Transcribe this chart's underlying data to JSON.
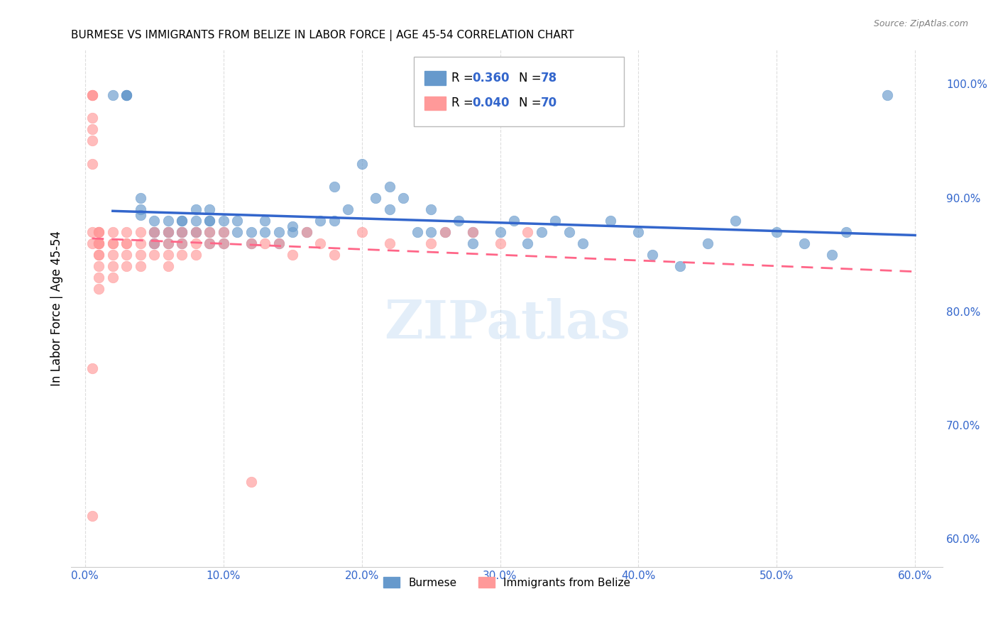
{
  "title": "BURMESE VS IMMIGRANTS FROM BELIZE IN LABOR FORCE | AGE 45-54 CORRELATION CHART",
  "source": "Source: ZipAtlas.com",
  "ylabel": "In Labor Force | Age 45-54",
  "right_ytick_labels": [
    "60.0%",
    "70.0%",
    "80.0%",
    "90.0%",
    "100.0%"
  ],
  "right_ytick_values": [
    0.6,
    0.7,
    0.8,
    0.9,
    1.0
  ],
  "xtick_labels": [
    "0.0%",
    "10.0%",
    "20.0%",
    "30.0%",
    "40.0%",
    "50.0%",
    "60.0%"
  ],
  "xtick_values": [
    0.0,
    0.1,
    0.2,
    0.3,
    0.4,
    0.5,
    0.6
  ],
  "xlim": [
    -0.01,
    0.62
  ],
  "ylim": [
    0.575,
    1.03
  ],
  "blue_color": "#6699CC",
  "pink_color": "#FF9999",
  "trend_blue": "#3366CC",
  "trend_pink": "#FF6688",
  "watermark": "ZIPatlas",
  "legend_label1": "Burmese",
  "legend_label2": "Immigrants from Belize",
  "legend_r1": "0.360",
  "legend_n1": "78",
  "legend_r2": "0.040",
  "legend_n2": "70",
  "blue_scatter_x": [
    0.02,
    0.03,
    0.03,
    0.03,
    0.04,
    0.04,
    0.04,
    0.05,
    0.05,
    0.05,
    0.05,
    0.05,
    0.06,
    0.06,
    0.06,
    0.06,
    0.07,
    0.07,
    0.07,
    0.07,
    0.07,
    0.08,
    0.08,
    0.08,
    0.08,
    0.09,
    0.09,
    0.09,
    0.09,
    0.09,
    0.1,
    0.1,
    0.1,
    0.11,
    0.11,
    0.12,
    0.12,
    0.13,
    0.13,
    0.14,
    0.14,
    0.15,
    0.15,
    0.16,
    0.17,
    0.18,
    0.18,
    0.19,
    0.2,
    0.21,
    0.22,
    0.22,
    0.23,
    0.24,
    0.25,
    0.25,
    0.26,
    0.27,
    0.28,
    0.28,
    0.3,
    0.31,
    0.32,
    0.33,
    0.34,
    0.35,
    0.36,
    0.38,
    0.4,
    0.41,
    0.43,
    0.45,
    0.47,
    0.5,
    0.52,
    0.54,
    0.55,
    0.58
  ],
  "blue_scatter_y": [
    0.99,
    0.99,
    0.99,
    0.99,
    0.885,
    0.89,
    0.9,
    0.86,
    0.87,
    0.88,
    0.86,
    0.87,
    0.87,
    0.87,
    0.86,
    0.88,
    0.86,
    0.87,
    0.87,
    0.88,
    0.88,
    0.87,
    0.88,
    0.87,
    0.89,
    0.87,
    0.88,
    0.86,
    0.88,
    0.89,
    0.86,
    0.87,
    0.88,
    0.87,
    0.88,
    0.86,
    0.87,
    0.87,
    0.88,
    0.86,
    0.87,
    0.87,
    0.875,
    0.87,
    0.88,
    0.88,
    0.91,
    0.89,
    0.93,
    0.9,
    0.89,
    0.91,
    0.9,
    0.87,
    0.87,
    0.89,
    0.87,
    0.88,
    0.86,
    0.87,
    0.87,
    0.88,
    0.86,
    0.87,
    0.88,
    0.87,
    0.86,
    0.88,
    0.87,
    0.85,
    0.84,
    0.86,
    0.88,
    0.87,
    0.86,
    0.85,
    0.87,
    0.99
  ],
  "pink_scatter_x": [
    0.005,
    0.005,
    0.005,
    0.005,
    0.005,
    0.005,
    0.005,
    0.005,
    0.005,
    0.005,
    0.01,
    0.01,
    0.01,
    0.01,
    0.01,
    0.01,
    0.01,
    0.01,
    0.01,
    0.01,
    0.01,
    0.01,
    0.02,
    0.02,
    0.02,
    0.02,
    0.02,
    0.02,
    0.03,
    0.03,
    0.03,
    0.03,
    0.03,
    0.04,
    0.04,
    0.04,
    0.04,
    0.05,
    0.05,
    0.05,
    0.06,
    0.06,
    0.06,
    0.06,
    0.07,
    0.07,
    0.07,
    0.08,
    0.08,
    0.08,
    0.09,
    0.09,
    0.1,
    0.1,
    0.12,
    0.12,
    0.13,
    0.14,
    0.15,
    0.16,
    0.17,
    0.18,
    0.2,
    0.22,
    0.25,
    0.26,
    0.28,
    0.3,
    0.32,
    0.005
  ],
  "pink_scatter_y": [
    0.99,
    0.99,
    0.99,
    0.97,
    0.96,
    0.95,
    0.93,
    0.87,
    0.86,
    0.75,
    0.87,
    0.86,
    0.87,
    0.87,
    0.86,
    0.86,
    0.86,
    0.85,
    0.85,
    0.84,
    0.83,
    0.82,
    0.87,
    0.86,
    0.86,
    0.85,
    0.84,
    0.83,
    0.87,
    0.86,
    0.86,
    0.85,
    0.84,
    0.87,
    0.86,
    0.85,
    0.84,
    0.87,
    0.86,
    0.85,
    0.87,
    0.86,
    0.85,
    0.84,
    0.87,
    0.86,
    0.85,
    0.87,
    0.86,
    0.85,
    0.87,
    0.86,
    0.87,
    0.86,
    0.86,
    0.65,
    0.86,
    0.86,
    0.85,
    0.87,
    0.86,
    0.85,
    0.87,
    0.86,
    0.86,
    0.87,
    0.87,
    0.86,
    0.87,
    0.62
  ],
  "grid_color": "#DDDDDD",
  "title_fontsize": 11,
  "axis_color": "#3366CC"
}
